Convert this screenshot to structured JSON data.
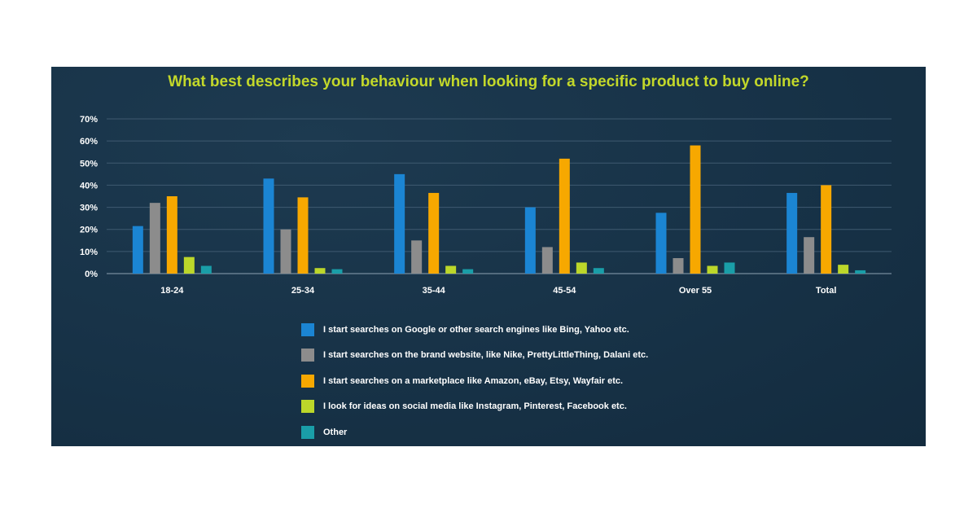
{
  "chart_data": {
    "type": "bar",
    "title": "What best describes your behaviour when looking for a specific product to buy online?",
    "categories": [
      "18-24",
      "25-34",
      "35-44",
      "45-54",
      "Over 55",
      "Total"
    ],
    "ylim": [
      0,
      70
    ],
    "yticks": [
      "70%",
      "60%",
      "50%",
      "40%",
      "30%",
      "20%",
      "10%",
      "0%"
    ],
    "ytick_values": [
      70,
      60,
      50,
      40,
      30,
      20,
      10,
      0
    ],
    "grid": true,
    "legend_position": "bottom",
    "series": [
      {
        "name": "I start searches on Google or other search engines like Bing, Yahoo etc.",
        "color": "#1b85d3",
        "values": [
          21.5,
          43,
          45,
          30,
          27.5,
          36.5
        ]
      },
      {
        "name": "I start searches on the brand website, like Nike, PrettyLittleThing, Dalani etc.",
        "color": "#8c8c8c",
        "values": [
          32,
          20,
          15,
          12,
          7,
          16.5
        ]
      },
      {
        "name": "I start searches on a marketplace like Amazon, eBay, Etsy, Wayfair etc.",
        "color": "#f7a800",
        "values": [
          35,
          34.5,
          36.5,
          52,
          58,
          40
        ]
      },
      {
        "name": "I look for ideas on social media like Instagram, Pinterest, Facebook etc.",
        "color": "#bcd72a",
        "values": [
          7.5,
          2.5,
          3.5,
          5,
          3.5,
          4
        ]
      },
      {
        "name": "Other",
        "color": "#1a9ea8",
        "values": [
          3.5,
          2,
          2,
          2.5,
          5,
          1.5
        ]
      }
    ]
  }
}
